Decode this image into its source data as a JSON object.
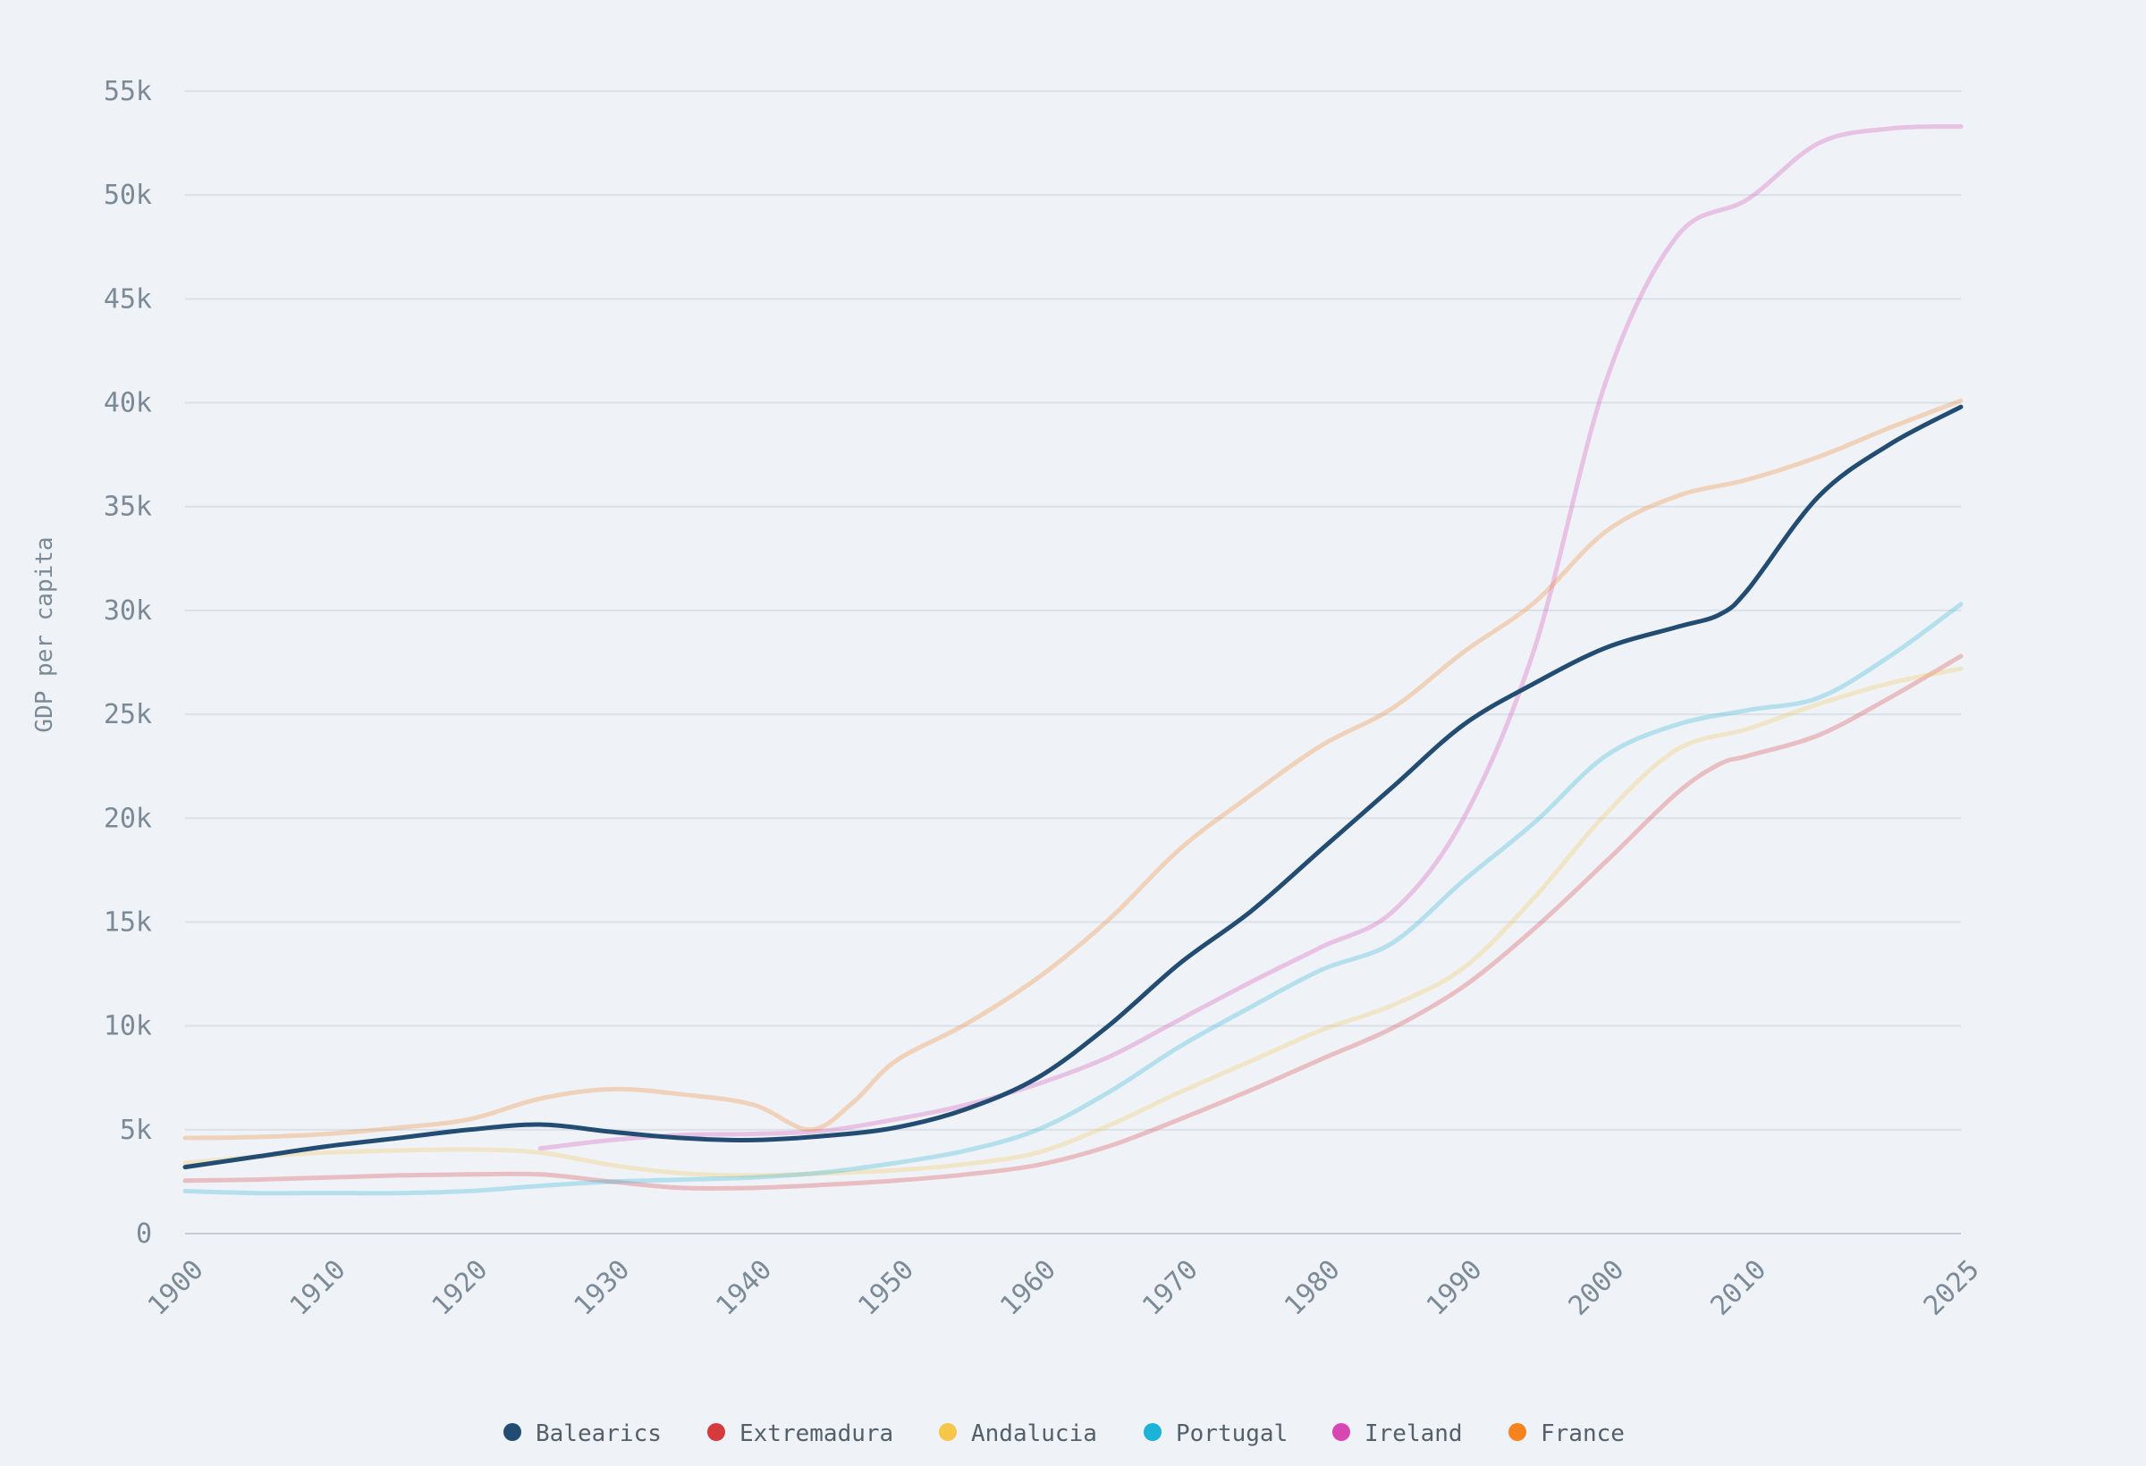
{
  "chart_data": {
    "type": "line",
    "title": "",
    "xlabel": "",
    "ylabel": "GDP per capita",
    "xlim": [
      1900,
      2025
    ],
    "ylim": [
      0,
      55000
    ],
    "x_ticks": [
      1900,
      1910,
      1920,
      1930,
      1940,
      1950,
      1960,
      1970,
      1980,
      1990,
      2000,
      2010,
      2025
    ],
    "y_ticks": [
      0,
      5000,
      10000,
      15000,
      20000,
      25000,
      30000,
      35000,
      40000,
      45000,
      50000,
      55000
    ],
    "y_tick_labels": [
      "0",
      "5k",
      "10k",
      "15k",
      "20k",
      "25k",
      "30k",
      "35k",
      "40k",
      "45k",
      "50k",
      "55k"
    ],
    "grid": "horizontal",
    "legend_position": "bottom",
    "series": [
      {
        "name": "Balearics",
        "color": "#234c72",
        "highlight": true,
        "points": [
          [
            1900,
            3200
          ],
          [
            1905,
            3700
          ],
          [
            1910,
            4200
          ],
          [
            1915,
            4600
          ],
          [
            1920,
            5000
          ],
          [
            1925,
            5250
          ],
          [
            1930,
            4900
          ],
          [
            1935,
            4600
          ],
          [
            1940,
            4500
          ],
          [
            1945,
            4700
          ],
          [
            1950,
            5100
          ],
          [
            1955,
            6000
          ],
          [
            1960,
            7500
          ],
          [
            1965,
            10000
          ],
          [
            1970,
            13000
          ],
          [
            1975,
            15500
          ],
          [
            1980,
            18500
          ],
          [
            1985,
            21500
          ],
          [
            1990,
            24500
          ],
          [
            1995,
            26500
          ],
          [
            2000,
            28200
          ],
          [
            2005,
            29200
          ],
          [
            2008,
            29800
          ],
          [
            2010,
            31000
          ],
          [
            2015,
            35500
          ],
          [
            2020,
            38000
          ],
          [
            2025,
            39800
          ]
        ]
      },
      {
        "name": "Extremadura",
        "color": "#d63a3d",
        "highlight": false,
        "points": [
          [
            1900,
            2550
          ],
          [
            1905,
            2600
          ],
          [
            1910,
            2700
          ],
          [
            1915,
            2800
          ],
          [
            1920,
            2850
          ],
          [
            1925,
            2850
          ],
          [
            1930,
            2500
          ],
          [
            1935,
            2200
          ],
          [
            1940,
            2200
          ],
          [
            1945,
            2350
          ],
          [
            1950,
            2550
          ],
          [
            1955,
            2850
          ],
          [
            1960,
            3300
          ],
          [
            1965,
            4200
          ],
          [
            1970,
            5500
          ],
          [
            1975,
            6900
          ],
          [
            1980,
            8400
          ],
          [
            1985,
            9900
          ],
          [
            1990,
            11900
          ],
          [
            1995,
            14700
          ],
          [
            2000,
            17900
          ],
          [
            2005,
            21200
          ],
          [
            2008,
            22600
          ],
          [
            2010,
            23000
          ],
          [
            2015,
            24000
          ],
          [
            2020,
            25800
          ],
          [
            2025,
            27800
          ]
        ]
      },
      {
        "name": "Andalucia",
        "color": "#f6c64a",
        "highlight": false,
        "points": [
          [
            1900,
            3400
          ],
          [
            1905,
            3700
          ],
          [
            1910,
            3900
          ],
          [
            1915,
            4000
          ],
          [
            1920,
            4050
          ],
          [
            1925,
            3900
          ],
          [
            1930,
            3300
          ],
          [
            1935,
            2900
          ],
          [
            1940,
            2800
          ],
          [
            1945,
            2900
          ],
          [
            1950,
            3050
          ],
          [
            1955,
            3350
          ],
          [
            1960,
            3900
          ],
          [
            1965,
            5200
          ],
          [
            1970,
            6800
          ],
          [
            1975,
            8300
          ],
          [
            1980,
            9800
          ],
          [
            1985,
            11000
          ],
          [
            1990,
            12800
          ],
          [
            1995,
            16200
          ],
          [
            2000,
            20200
          ],
          [
            2005,
            23300
          ],
          [
            2010,
            24300
          ],
          [
            2015,
            25500
          ],
          [
            2020,
            26500
          ],
          [
            2025,
            27200
          ]
        ]
      },
      {
        "name": "Portugal",
        "color": "#1cb3d8",
        "highlight": false,
        "points": [
          [
            1900,
            2050
          ],
          [
            1905,
            1950
          ],
          [
            1910,
            1950
          ],
          [
            1915,
            1950
          ],
          [
            1920,
            2050
          ],
          [
            1925,
            2300
          ],
          [
            1930,
            2500
          ],
          [
            1935,
            2600
          ],
          [
            1940,
            2700
          ],
          [
            1945,
            2950
          ],
          [
            1950,
            3400
          ],
          [
            1955,
            4000
          ],
          [
            1960,
            5000
          ],
          [
            1965,
            6800
          ],
          [
            1970,
            9000
          ],
          [
            1975,
            10900
          ],
          [
            1980,
            12700
          ],
          [
            1985,
            14000
          ],
          [
            1990,
            17000
          ],
          [
            1995,
            19800
          ],
          [
            2000,
            23000
          ],
          [
            2005,
            24500
          ],
          [
            2010,
            25200
          ],
          [
            2015,
            25800
          ],
          [
            2020,
            27800
          ],
          [
            2025,
            30300
          ]
        ]
      },
      {
        "name": "Ireland",
        "color": "#d647b4",
        "highlight": false,
        "points": [
          [
            1925,
            4100
          ],
          [
            1930,
            4500
          ],
          [
            1935,
            4750
          ],
          [
            1940,
            4800
          ],
          [
            1945,
            4950
          ],
          [
            1950,
            5500
          ],
          [
            1955,
            6200
          ],
          [
            1960,
            7200
          ],
          [
            1965,
            8500
          ],
          [
            1970,
            10300
          ],
          [
            1975,
            12100
          ],
          [
            1980,
            13800
          ],
          [
            1985,
            15500
          ],
          [
            1990,
            20000
          ],
          [
            1995,
            28200
          ],
          [
            2000,
            41000
          ],
          [
            2005,
            48000
          ],
          [
            2010,
            49800
          ],
          [
            2015,
            52500
          ],
          [
            2020,
            53200
          ],
          [
            2025,
            53300
          ]
        ]
      },
      {
        "name": "France",
        "color": "#f6831d",
        "highlight": false,
        "points": [
          [
            1900,
            4600
          ],
          [
            1905,
            4650
          ],
          [
            1910,
            4800
          ],
          [
            1915,
            5100
          ],
          [
            1920,
            5500
          ],
          [
            1925,
            6500
          ],
          [
            1930,
            6950
          ],
          [
            1935,
            6700
          ],
          [
            1940,
            6200
          ],
          [
            1944,
            5000
          ],
          [
            1947,
            6300
          ],
          [
            1950,
            8300
          ],
          [
            1955,
            10100
          ],
          [
            1960,
            12300
          ],
          [
            1965,
            15100
          ],
          [
            1970,
            18500
          ],
          [
            1975,
            21100
          ],
          [
            1980,
            23500
          ],
          [
            1985,
            25300
          ],
          [
            1990,
            28000
          ],
          [
            1995,
            30400
          ],
          [
            2000,
            33800
          ],
          [
            2005,
            35500
          ],
          [
            2010,
            36300
          ],
          [
            2015,
            37400
          ],
          [
            2020,
            38800
          ],
          [
            2025,
            40100
          ]
        ]
      }
    ]
  }
}
